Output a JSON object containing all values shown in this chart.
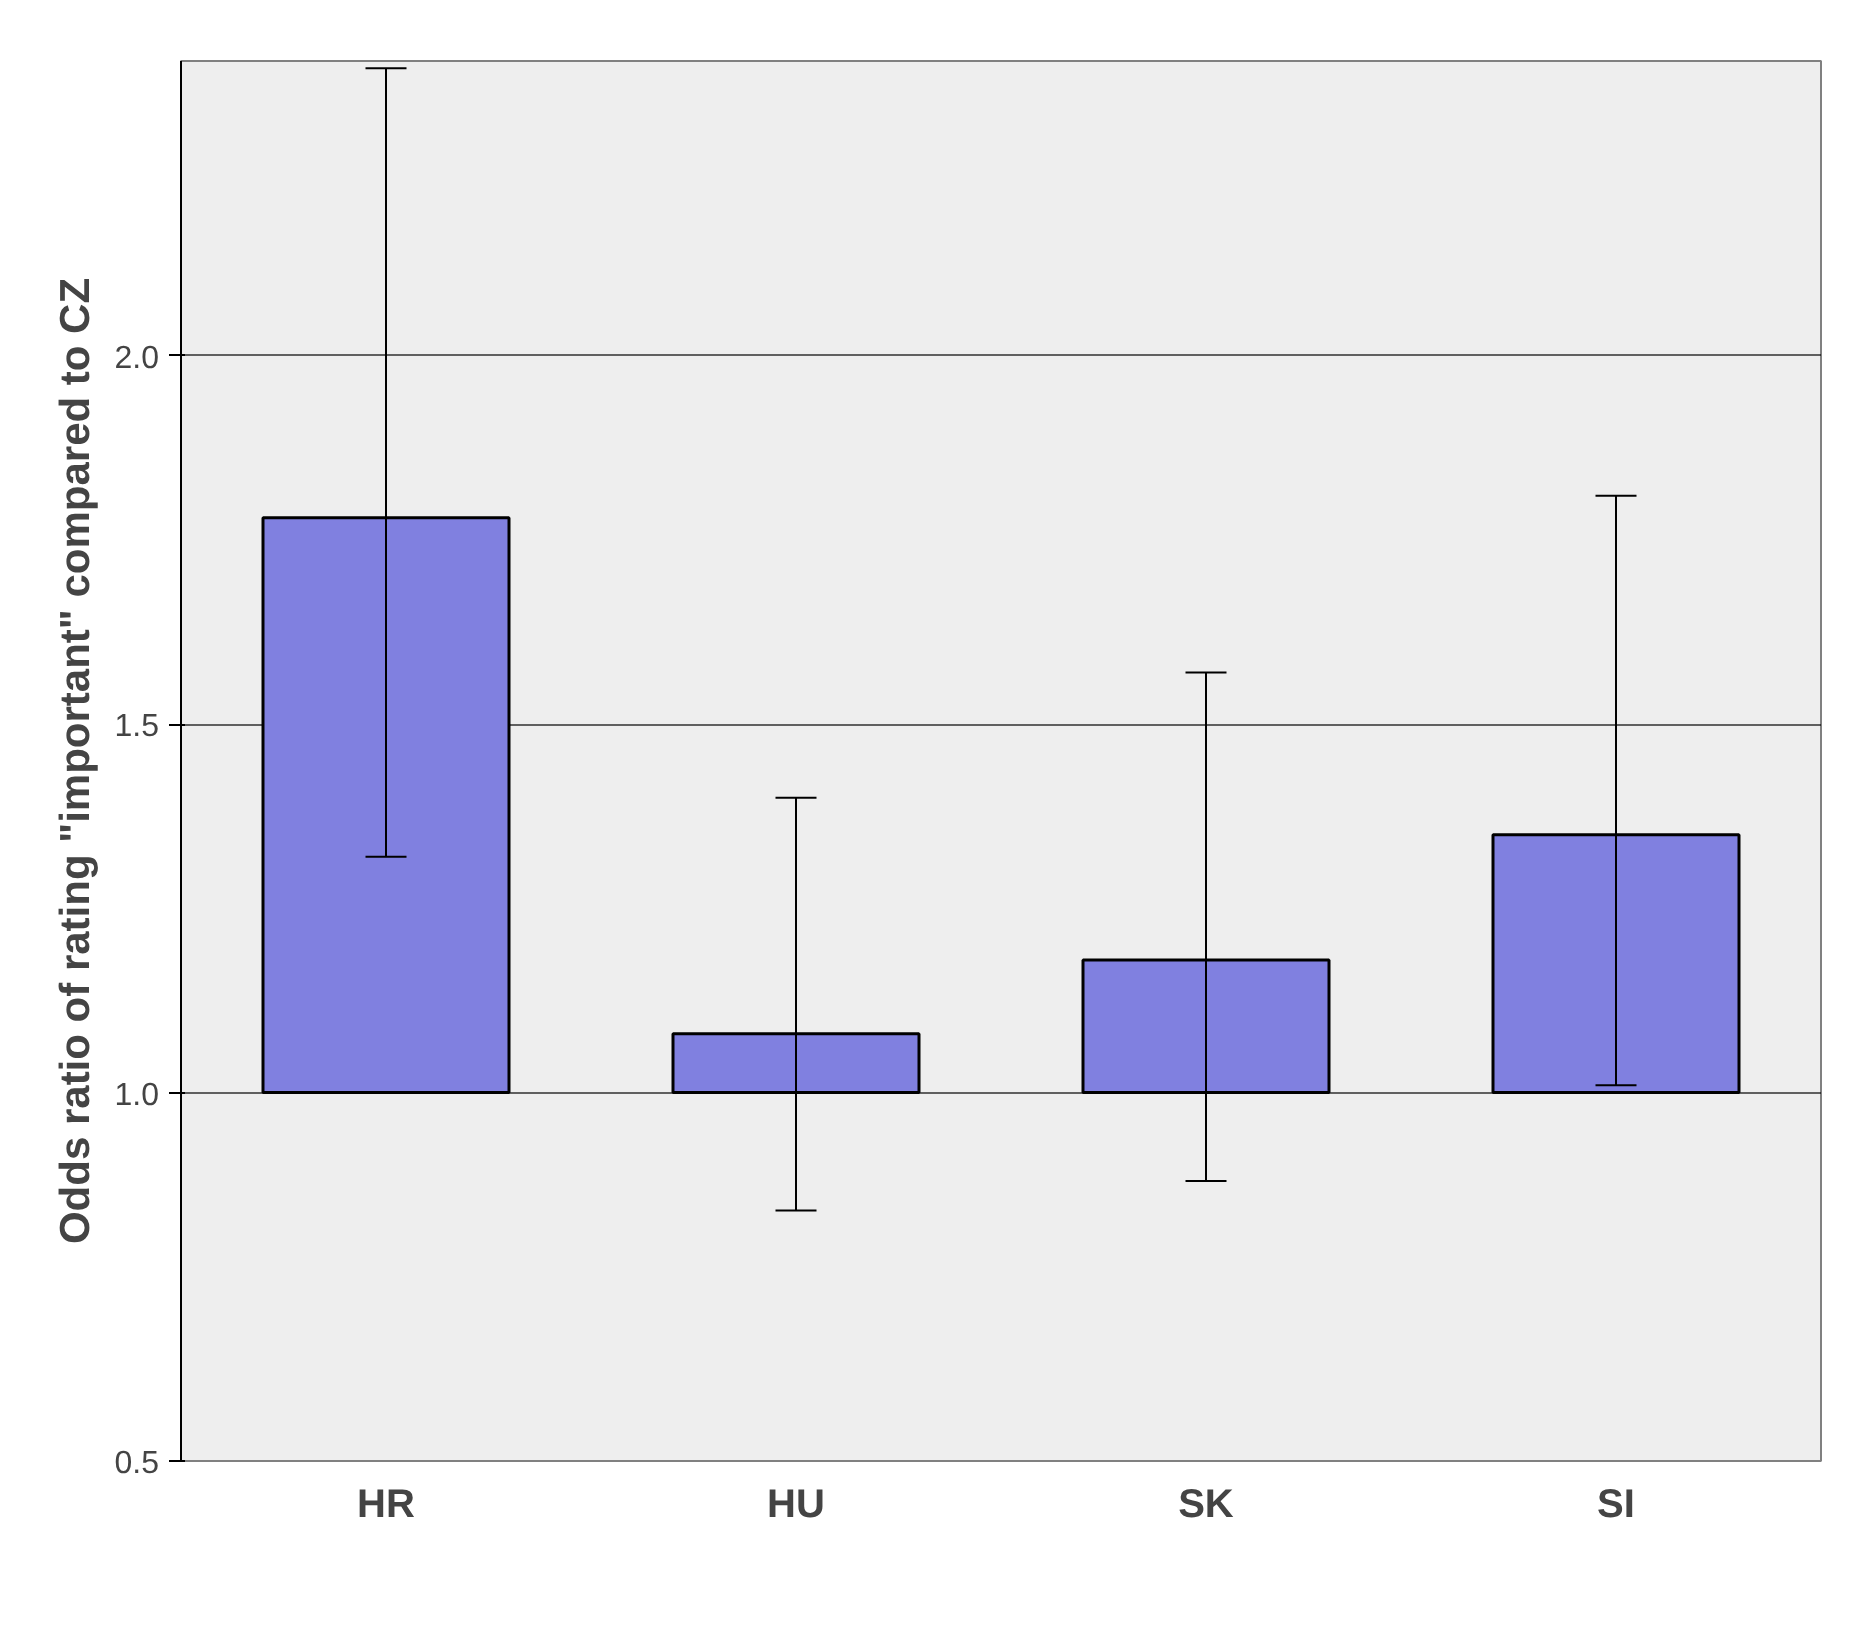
{
  "chart_data": {
    "type": "bar",
    "ylabel": "Odds ratio of rating \"important\" compared to CZ",
    "categories": [
      "HR",
      "HU",
      "SK",
      "SI"
    ],
    "base": [
      1.0,
      1.0,
      1.0,
      1.0
    ],
    "values": [
      0.78,
      0.08,
      0.18,
      0.35
    ],
    "errors": [
      [
        1.32,
        2.39
      ],
      [
        0.84,
        1.4
      ],
      [
        0.88,
        1.57
      ],
      [
        1.01,
        1.81
      ]
    ],
    "color": "#8080e0",
    "ylim": [
      0.5,
      2.4
    ],
    "yticks": [
      {
        "value": 0.5,
        "label": "0.5"
      },
      {
        "value": 1.0,
        "label": "1.0"
      },
      {
        "value": 1.5,
        "label": "1.5"
      },
      {
        "value": 2.0,
        "label": "2.0"
      }
    ],
    "grid": "y"
  }
}
